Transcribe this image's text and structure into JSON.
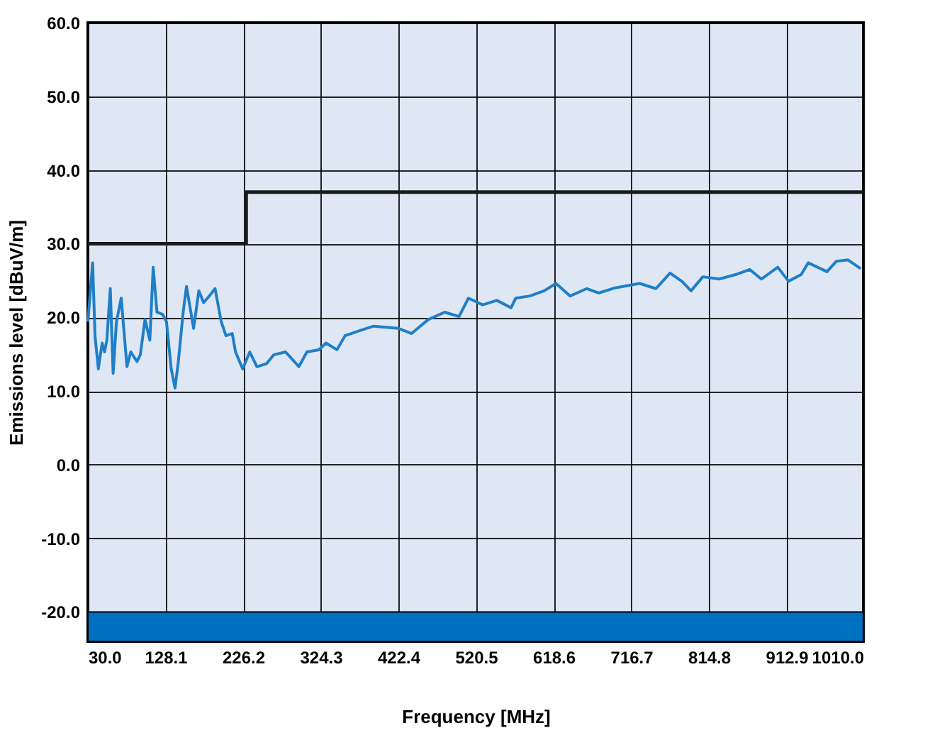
{
  "chart_data": {
    "type": "line",
    "xlabel": "Frequency [MHz]",
    "ylabel": "Emissions level [dBuV/m]",
    "xlim": [
      30,
      1010
    ],
    "xticks": [
      {
        "value": 30,
        "label": "30.0"
      },
      {
        "value": 128.1,
        "label": "128.1"
      },
      {
        "value": 226.2,
        "label": "226.2"
      },
      {
        "value": 324.3,
        "label": "324.3"
      },
      {
        "value": 422.4,
        "label": "422.4"
      },
      {
        "value": 520.5,
        "label": "520.5"
      },
      {
        "value": 618.6,
        "label": "618.6"
      },
      {
        "value": 716.7,
        "label": "716.7"
      },
      {
        "value": 814.8,
        "label": "814.8"
      },
      {
        "value": 912.9,
        "label": "912.9"
      },
      {
        "value": 1010,
        "label": "1010.0"
      }
    ],
    "ylim": [
      -24,
      60
    ],
    "yticks": [
      {
        "value": -20,
        "label": "-20.0"
      },
      {
        "value": -10,
        "label": "-10.0"
      },
      {
        "value": 0,
        "label": "0.0"
      },
      {
        "value": 10,
        "label": "10.0"
      },
      {
        "value": 20,
        "label": "20.0"
      },
      {
        "value": 30,
        "label": "30.0"
      },
      {
        "value": 40,
        "label": "40.0"
      },
      {
        "value": 50,
        "label": "50.0"
      },
      {
        "value": 60,
        "label": "60.0"
      }
    ],
    "grid": true,
    "legend": false,
    "marker": "none",
    "line_style": "solid",
    "bands": [
      {
        "axis": "y",
        "from": -24,
        "to": -20,
        "color": "#0070c0"
      }
    ],
    "series": [
      {
        "type": "step",
        "color": "#1a1a1a",
        "x": [
          30,
          230,
          1010
        ],
        "values": [
          30,
          37,
          37
        ]
      },
      {
        "color": "#1f7fc8",
        "x": [
          30,
          36,
          39,
          43.2,
          48,
          51,
          54,
          58.3,
          61.9,
          66.1,
          72.1,
          79.4,
          84.2,
          92,
          96.2,
          102.2,
          108.3,
          112.5,
          117.3,
          124.5,
          129.3,
          135.3,
          140.1,
          144.3,
          150.4,
          154.6,
          163.6,
          170.2,
          176.2,
          183.5,
          190.7,
          198.5,
          204.5,
          212.4,
          216.6,
          225.6,
          234.6,
          243.6,
          255.7,
          264.7,
          279.8,
          285.8,
          296.6,
          306.8,
          321.9,
          330.9,
          344.7,
          355,
          382,
          391.3,
          422.4,
          439.1,
          460.1,
          481,
          499,
          510.9,
          528.9,
          546.8,
          564.8,
          570.7,
          588.7,
          606.6,
          621.6,
          639.5,
          660.5,
          675.4,
          696.4,
          717.3,
          727.2,
          747.9,
          765.7,
          780.5,
          792.3,
          807.1,
          827.8,
          848.5,
          866.3,
          881.1,
          901.8,
          915.4,
          931.4,
          940.3,
          964,
          975.8,
          990.6,
          1006.6
        ],
        "values": [
          19.4,
          27.4,
          17.5,
          13.0,
          16.5,
          15.3,
          16.9,
          23.9,
          12.4,
          19.4,
          22.6,
          13.3,
          15.3,
          14.0,
          14.9,
          19.7,
          16.9,
          26.8,
          20.7,
          20.4,
          19.4,
          13.0,
          10.4,
          14.0,
          20.7,
          24.2,
          18.5,
          23.6,
          22.0,
          22.9,
          23.9,
          19.4,
          17.5,
          17.8,
          15.3,
          13.0,
          15.3,
          13.3,
          13.7,
          14.9,
          15.3,
          14.6,
          13.3,
          15.3,
          15.6,
          16.5,
          15.6,
          17.5,
          18.5,
          18.8,
          18.5,
          17.8,
          19.7,
          20.7,
          20.1,
          22.6,
          21.7,
          22.3,
          21.3,
          22.6,
          22.9,
          23.6,
          24.6,
          22.9,
          23.9,
          23.3,
          24.0,
          24.4,
          24.6,
          23.9,
          26.0,
          24.9,
          23.6,
          25.5,
          25.2,
          25.8,
          26.5,
          25.2,
          26.8,
          24.9,
          25.8,
          27.4,
          26.2,
          27.6,
          27.8,
          26.6
        ]
      }
    ]
  }
}
